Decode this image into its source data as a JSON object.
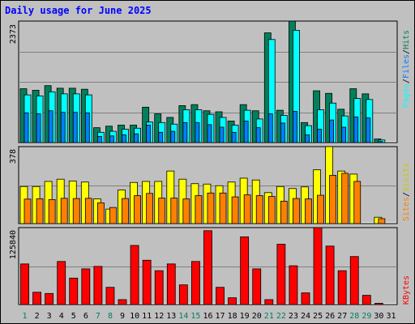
{
  "chart_data": [
    {
      "type": "bar",
      "title": "Daily usage for June 2025",
      "categories": [
        "1",
        "2",
        "3",
        "4",
        "5",
        "6",
        "7",
        "8",
        "9",
        "10",
        "11",
        "12",
        "13",
        "14",
        "15",
        "16",
        "17",
        "18",
        "19",
        "20",
        "21",
        "22",
        "23",
        "24",
        "25",
        "26",
        "27",
        "28",
        "29",
        "30",
        "31"
      ],
      "weekend_days": [
        "1",
        "7",
        "8",
        "14",
        "15",
        "21",
        "22",
        "28",
        "29"
      ],
      "ymax_label": "2373",
      "ylabel": "Pages / Files / Hits",
      "series": [
        {
          "name": "Hits",
          "color": "#00805c",
          "values": [
            1050,
            1020,
            1110,
            1060,
            1060,
            1040,
            290,
            320,
            340,
            340,
            690,
            560,
            490,
            720,
            740,
            620,
            600,
            420,
            740,
            620,
            2140,
            630,
            2370,
            390,
            1010,
            960,
            650,
            1050,
            950,
            70,
            0
          ]
        },
        {
          "name": "Files",
          "color": "#00ffff",
          "values": [
            930,
            910,
            990,
            950,
            950,
            930,
            200,
            220,
            260,
            280,
            400,
            390,
            360,
            640,
            640,
            550,
            490,
            340,
            630,
            460,
            2010,
            530,
            2190,
            330,
            640,
            770,
            520,
            860,
            840,
            50,
            0
          ]
        },
        {
          "name": "Pages",
          "color": "#0080ff",
          "values": [
            580,
            560,
            620,
            590,
            590,
            580,
            120,
            130,
            150,
            170,
            340,
            200,
            220,
            390,
            390,
            350,
            300,
            200,
            420,
            290,
            560,
            380,
            610,
            150,
            260,
            440,
            300,
            500,
            480,
            20,
            0
          ]
        }
      ]
    },
    {
      "type": "bar",
      "categories": [
        "1",
        "2",
        "3",
        "4",
        "5",
        "6",
        "7",
        "8",
        "9",
        "10",
        "11",
        "12",
        "13",
        "14",
        "15",
        "16",
        "17",
        "18",
        "19",
        "20",
        "21",
        "22",
        "23",
        "24",
        "25",
        "26",
        "27",
        "28",
        "29",
        "30",
        "31"
      ],
      "ymax_label": "378",
      "ylabel": "Sites / Visits",
      "series": [
        {
          "name": "Visits",
          "color": "#ffff00",
          "values": [
            182,
            182,
            207,
            218,
            209,
            204,
            121,
            71,
            165,
            202,
            207,
            207,
            258,
            218,
            196,
            194,
            186,
            204,
            223,
            214,
            152,
            182,
            172,
            180,
            264,
            378,
            258,
            243,
            0,
            31,
            0
          ]
        },
        {
          "name": "Sites",
          "color": "#ff8000",
          "values": [
            120,
            122,
            118,
            124,
            123,
            124,
            102,
            79,
            123,
            137,
            148,
            125,
            125,
            121,
            137,
            150,
            150,
            131,
            141,
            137,
            133,
            110,
            123,
            121,
            139,
            237,
            247,
            207,
            0,
            24,
            0
          ]
        }
      ]
    },
    {
      "type": "bar",
      "categories": [
        "1",
        "2",
        "3",
        "4",
        "5",
        "6",
        "7",
        "8",
        "9",
        "10",
        "11",
        "12",
        "13",
        "14",
        "15",
        "16",
        "17",
        "18",
        "19",
        "20",
        "21",
        "22",
        "23",
        "24",
        "25",
        "26",
        "27",
        "28",
        "29",
        "30",
        "31"
      ],
      "ymax_label": "125840",
      "ylabel": "KBytes",
      "series": [
        {
          "name": "KBytes",
          "color": "#ff0000",
          "values": [
            66000,
            20000,
            18000,
            70000,
            43000,
            58000,
            62000,
            28000,
            8000,
            96000,
            72000,
            55000,
            66000,
            32000,
            70000,
            120000,
            28000,
            11000,
            110000,
            58000,
            8000,
            98000,
            63000,
            19000,
            125000,
            95000,
            55000,
            78000,
            15000,
            2000,
            0
          ]
        }
      ]
    }
  ]
}
